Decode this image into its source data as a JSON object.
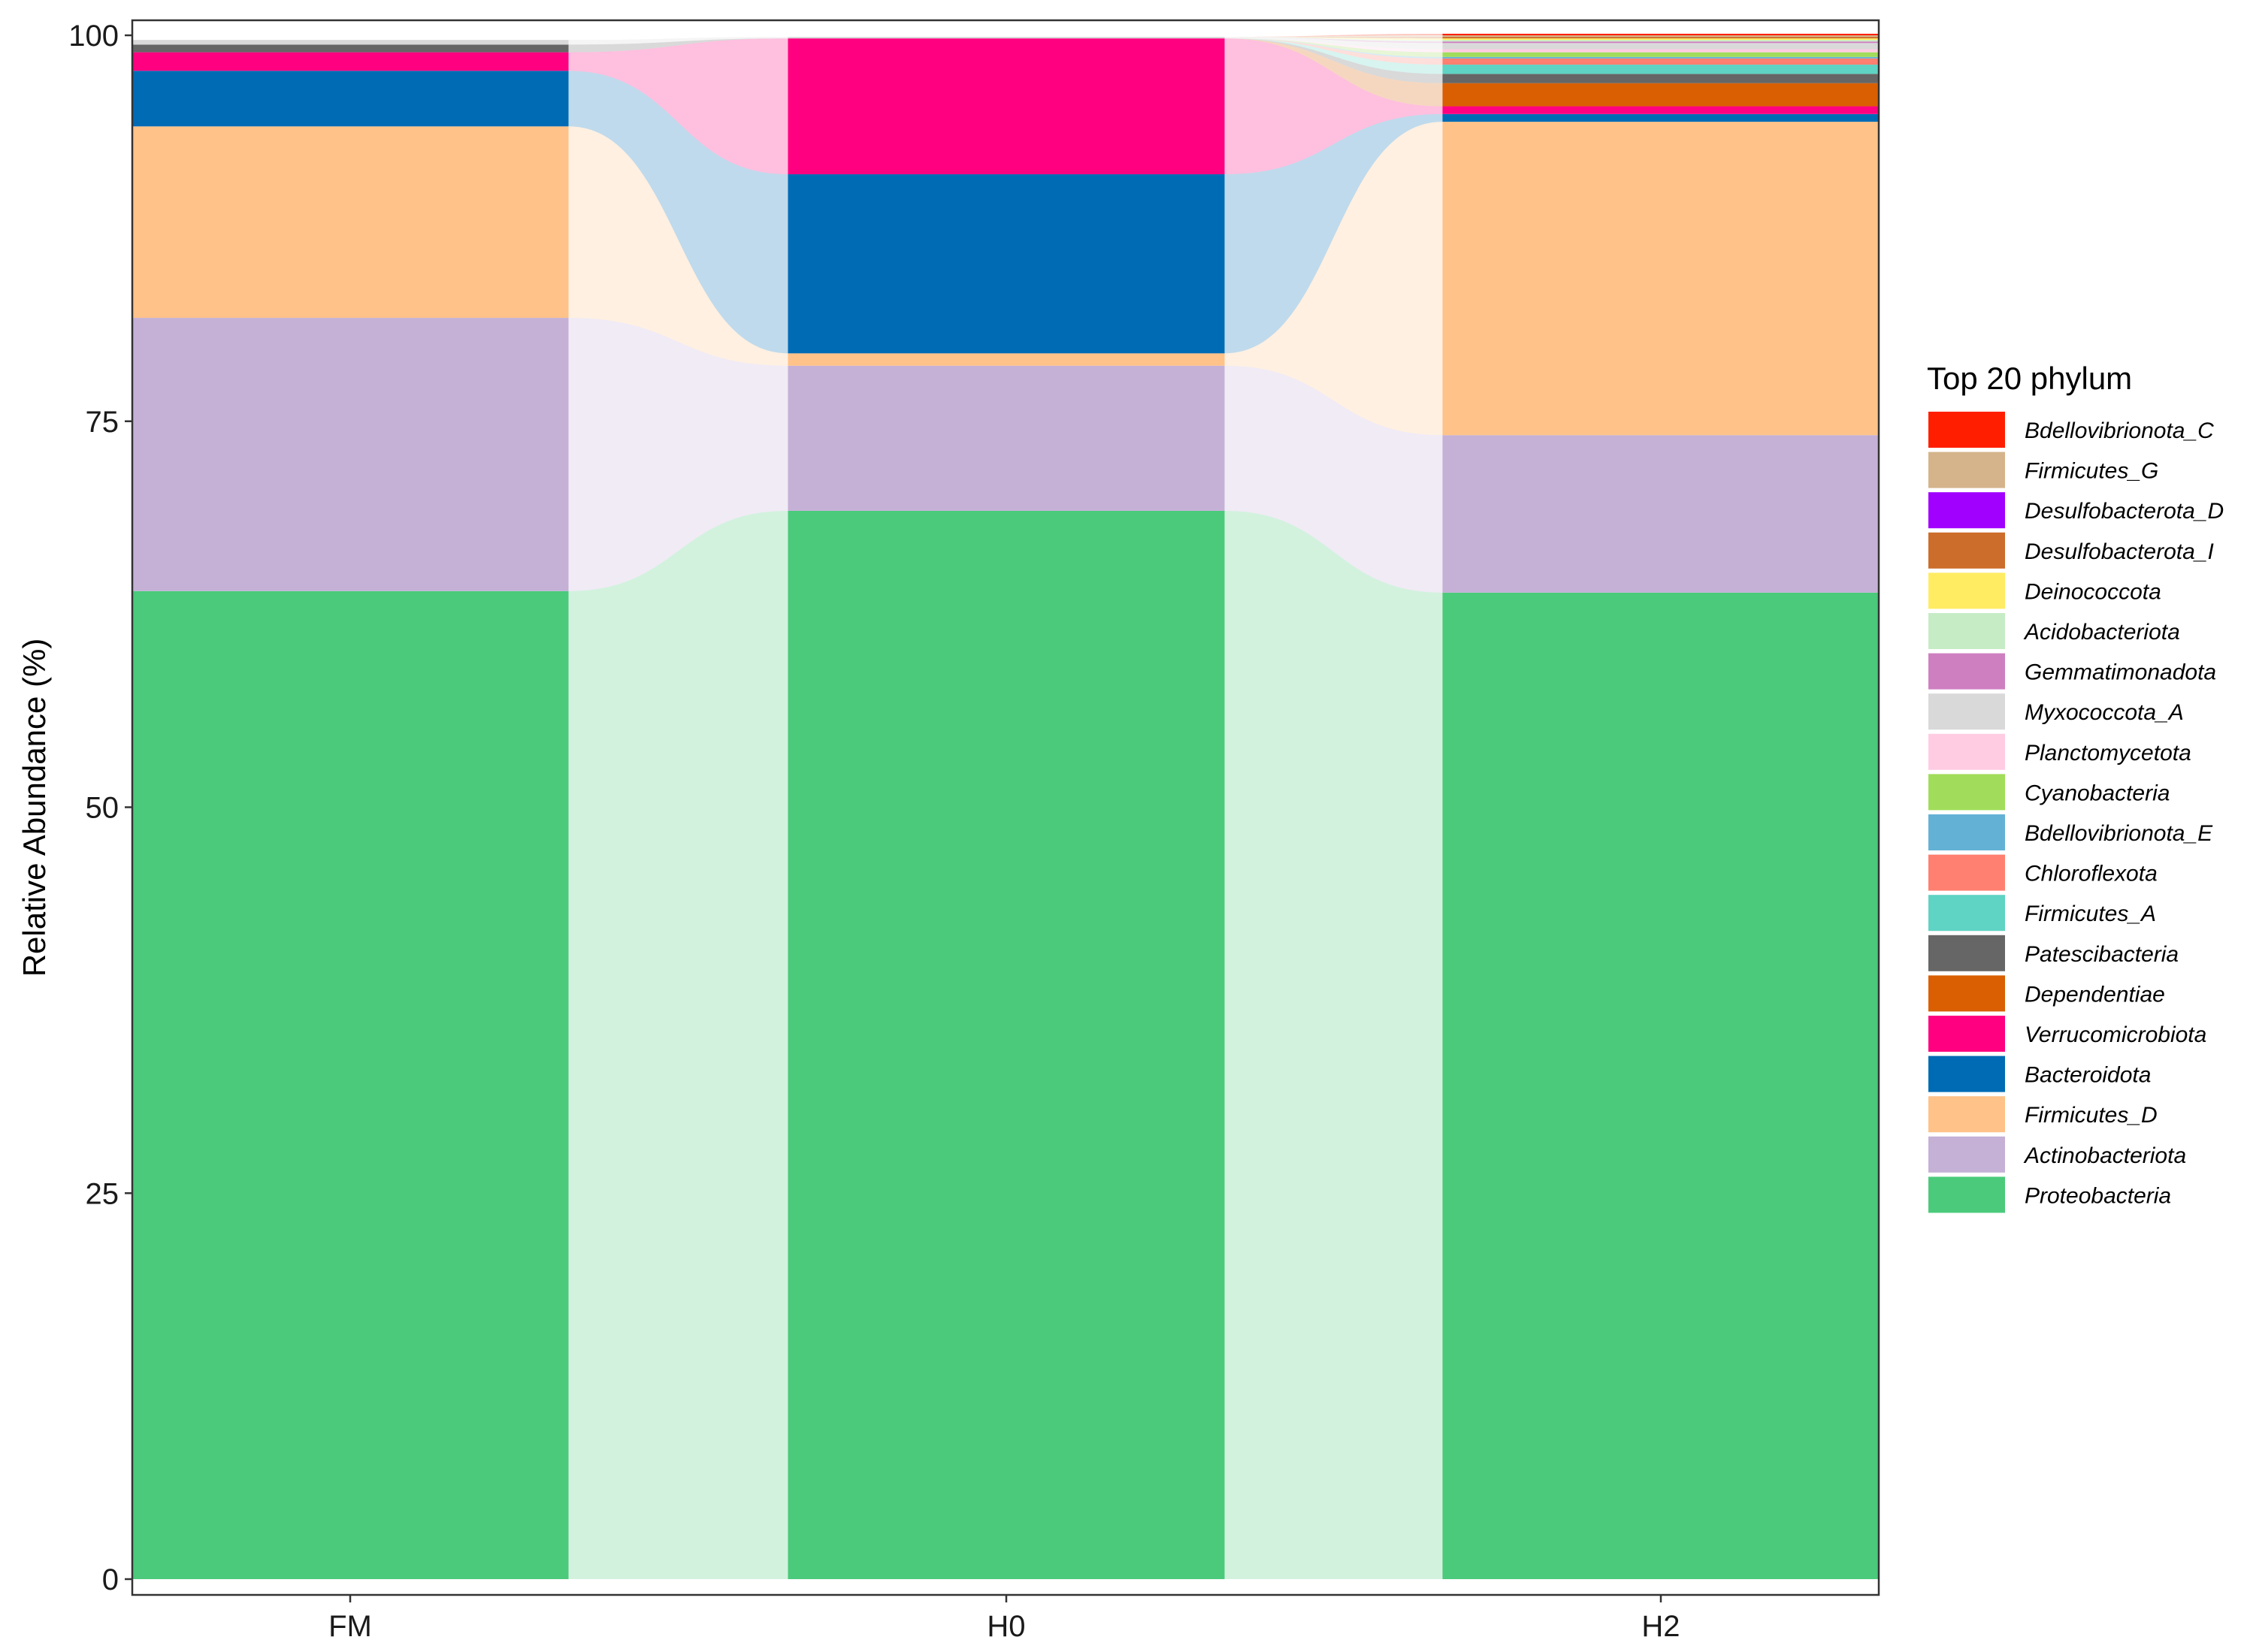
{
  "chart_data": {
    "type": "area",
    "subtype": "stacked-bar-alluvial",
    "categories": [
      "FM",
      "H0",
      "H2"
    ],
    "ylabel": "Relative Abundance (%)",
    "xlabel": "",
    "ylim": [
      0,
      100
    ],
    "yticks": [
      "0",
      "25",
      "50",
      "75",
      "100"
    ],
    "grid": false,
    "legend": {
      "title": "Top 20 phylum",
      "position": "right"
    },
    "series": [
      {
        "name": "Proteobacteria",
        "color": "#4BCA7B",
        "values": [
          64.0,
          69.2,
          63.9
        ]
      },
      {
        "name": "Actinobacteriota",
        "color": "#C5B0D6",
        "values": [
          17.7,
          9.4,
          10.2
        ]
      },
      {
        "name": "Firmicutes_D",
        "color": "#FFC288",
        "values": [
          12.4,
          0.8,
          20.3
        ]
      },
      {
        "name": "Bacteroidota",
        "color": "#006BB5",
        "values": [
          3.6,
          11.6,
          0.5
        ]
      },
      {
        "name": "Verrucomicrobiota",
        "color": "#FF0080",
        "values": [
          1.2,
          8.8,
          0.5
        ]
      },
      {
        "name": "Dependentiae",
        "color": "#D95F02",
        "values": [
          0.0,
          0.0,
          1.5
        ]
      },
      {
        "name": "Patescibacteria",
        "color": "#666666",
        "values": [
          0.5,
          0.0,
          0.6
        ]
      },
      {
        "name": "Firmicutes_A",
        "color": "#5FD3C4",
        "values": [
          0.0,
          0.0,
          0.6
        ]
      },
      {
        "name": "Chloroflexota",
        "color": "#FF7F70",
        "values": [
          0.0,
          0.0,
          0.4
        ]
      },
      {
        "name": "Bdellovibrionota_E",
        "color": "#64B1D6",
        "values": [
          0.0,
          0.0,
          0.1
        ]
      },
      {
        "name": "Cyanobacteria",
        "color": "#A1DD5A",
        "values": [
          0.0,
          0.0,
          0.3
        ]
      },
      {
        "name": "Planctomycetota",
        "color": "#FFCCE2",
        "values": [
          0.0,
          0.0,
          0.2
        ]
      },
      {
        "name": "Myxococcota_A",
        "color": "#D9D9D9",
        "values": [
          0.3,
          0.1,
          0.4
        ]
      },
      {
        "name": "Gemmatimonadota",
        "color": "#CE7FC0",
        "values": [
          0.0,
          0.0,
          0.1
        ]
      },
      {
        "name": "Acidobacteriota",
        "color": "#C6ECC6",
        "values": [
          0.0,
          0.0,
          0.1
        ]
      },
      {
        "name": "Deinococcota",
        "color": "#FFEC62",
        "values": [
          0.0,
          0.0,
          0.1
        ]
      },
      {
        "name": "Desulfobacterota_I",
        "color": "#CC6D2B",
        "values": [
          0.0,
          0.0,
          0.1
        ]
      },
      {
        "name": "Desulfobacterota_D",
        "color": "#A100FF",
        "values": [
          0.0,
          0.0,
          0.0
        ]
      },
      {
        "name": "Firmicutes_G",
        "color": "#D5B48B",
        "values": [
          0.0,
          0.0,
          0.1
        ]
      },
      {
        "name": "Bdellovibrionota_C",
        "color": "#FF1F00",
        "values": [
          0.0,
          0.0,
          0.1
        ]
      }
    ]
  }
}
